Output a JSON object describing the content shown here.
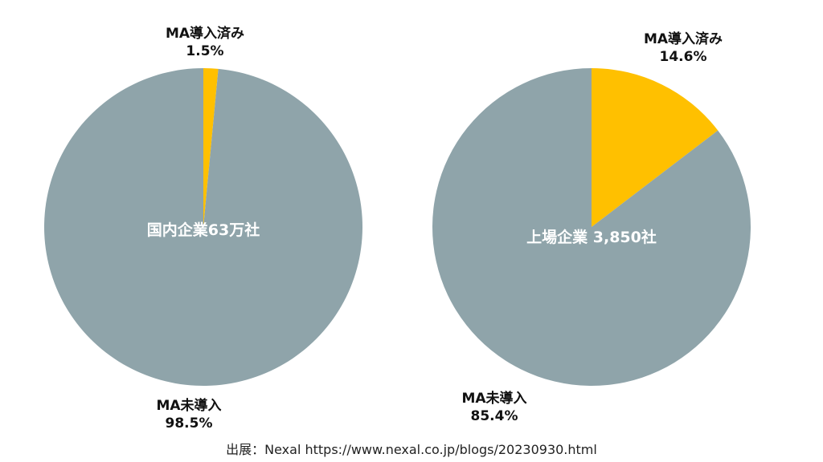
{
  "colors": {
    "adopted": "#FFC000",
    "not_adopted": "#8FA4AA"
  },
  "chart_data": [
    {
      "type": "pie",
      "center_label": "国内企業63万社",
      "slices": [
        {
          "label": "MA導入済み",
          "value": 1.5,
          "value_label": "1.5%"
        },
        {
          "label": "MA未導入",
          "value": 98.5,
          "value_label": "98.5%"
        }
      ]
    },
    {
      "type": "pie",
      "center_label": "上場企業 3,850社",
      "slices": [
        {
          "label": "MA導入済み",
          "value": 14.6,
          "value_label": "14.6%"
        },
        {
          "label": "MA未導入",
          "value": 85.4,
          "value_label": "85.4%"
        }
      ]
    }
  ],
  "source": "出展：Nexal https://www.nexal.co.jp/blogs/20230930.html"
}
